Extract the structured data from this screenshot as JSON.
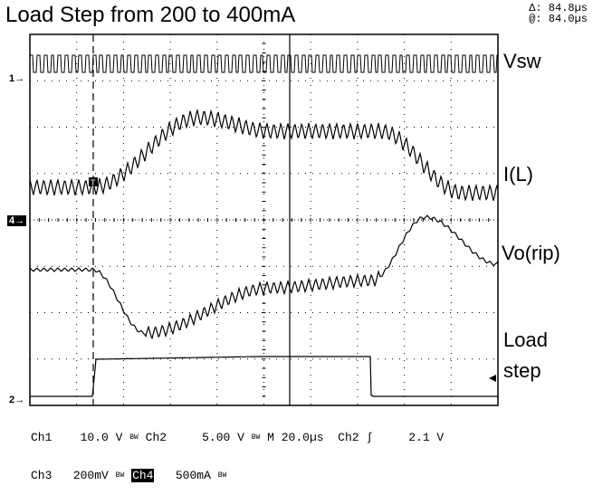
{
  "title": "Load Step from 200 to 400mA",
  "cursor": {
    "delta": "Δ: 84.8µs",
    "at": "@: 84.0µs"
  },
  "traces": {
    "vsw": "Vsw",
    "il": "I(L)",
    "vo": "Vo(rip)",
    "load_1": "Load",
    "load_2": "step"
  },
  "markers": {
    "ch1": "1",
    "ch4": "4",
    "ch2": "2"
  },
  "status": {
    "ch1": "Ch1",
    "ch1_scale": "10.0 V",
    "ch2": "Ch2",
    "ch2_scale": "5.00 V",
    "timebase": "M 20.0µs",
    "trig_src": "Ch2",
    "trig_slope": "ʃ",
    "trig_level": "2.1 V",
    "ch3": "Ch3",
    "ch3_scale": "200mV",
    "ch4": "Ch4",
    "ch4_scale": "500mA",
    "bw": "BW"
  }
}
